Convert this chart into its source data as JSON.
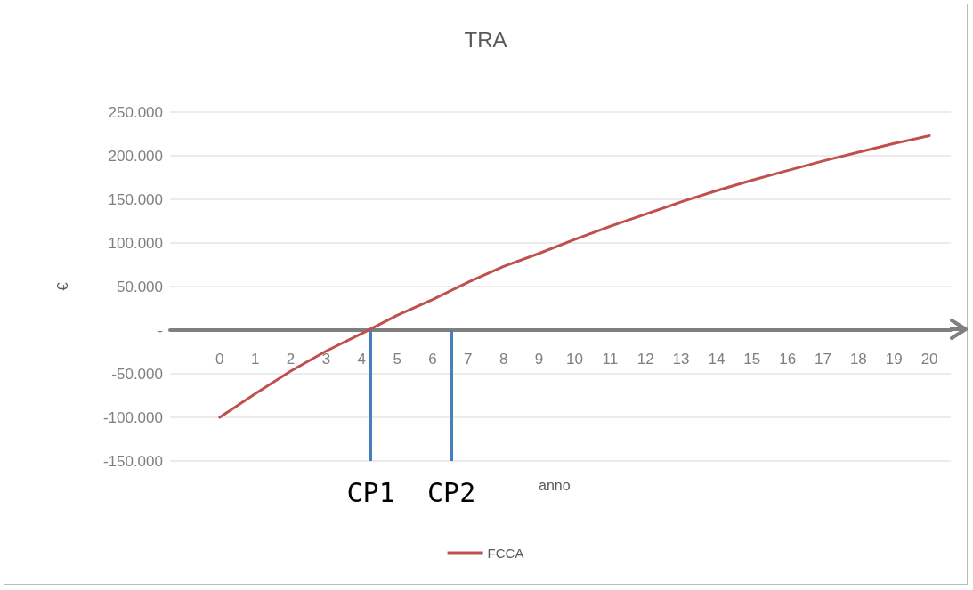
{
  "chart_data": {
    "type": "line",
    "title": "TRA",
    "ylabel": "€",
    "annotations": [
      "anno"
    ],
    "x": [
      0,
      1,
      2,
      3,
      4,
      5,
      6,
      7,
      8,
      9,
      10,
      11,
      12,
      13,
      14,
      15,
      16,
      17,
      18,
      19,
      20
    ],
    "series": [
      {
        "name": "FCCA",
        "color": "#c0504d",
        "values": [
          -100000,
          -73000,
          -47000,
          -24000,
          -4000,
          17000,
          35000,
          55000,
          73000,
          88000,
          104000,
          119000,
          133000,
          147000,
          160000,
          172000,
          183000,
          194000,
          204000,
          214000,
          223000
        ]
      }
    ],
    "xlim": [
      -1.4,
      20.6
    ],
    "xticks": [
      0,
      1,
      2,
      3,
      4,
      5,
      6,
      7,
      8,
      9,
      10,
      11,
      12,
      13,
      14,
      15,
      16,
      17,
      18,
      19,
      20
    ],
    "ylim": [
      -150000,
      250000
    ],
    "yticks": [
      {
        "value": -150000,
        "label": "-150.000"
      },
      {
        "value": -100000,
        "label": "-100.000"
      },
      {
        "value": -50000,
        "label": "-50.000"
      },
      {
        "value": 0,
        "label": "-"
      },
      {
        "value": 50000,
        "label": "50.000"
      },
      {
        "value": 100000,
        "label": "100.000"
      },
      {
        "value": 150000,
        "label": "150.000"
      },
      {
        "value": 200000,
        "label": "200.000"
      },
      {
        "value": 250000,
        "label": "250.000"
      }
    ],
    "ref_lines": [
      {
        "axis": "x",
        "value": 4.26,
        "label": "CP1",
        "color": "#4a7ebb"
      },
      {
        "axis": "x",
        "value": 6.53,
        "label": "CP2",
        "color": "#4a7ebb"
      }
    ],
    "grid": "y",
    "legend": "bottom",
    "marker": "none",
    "line_style": "solid"
  }
}
